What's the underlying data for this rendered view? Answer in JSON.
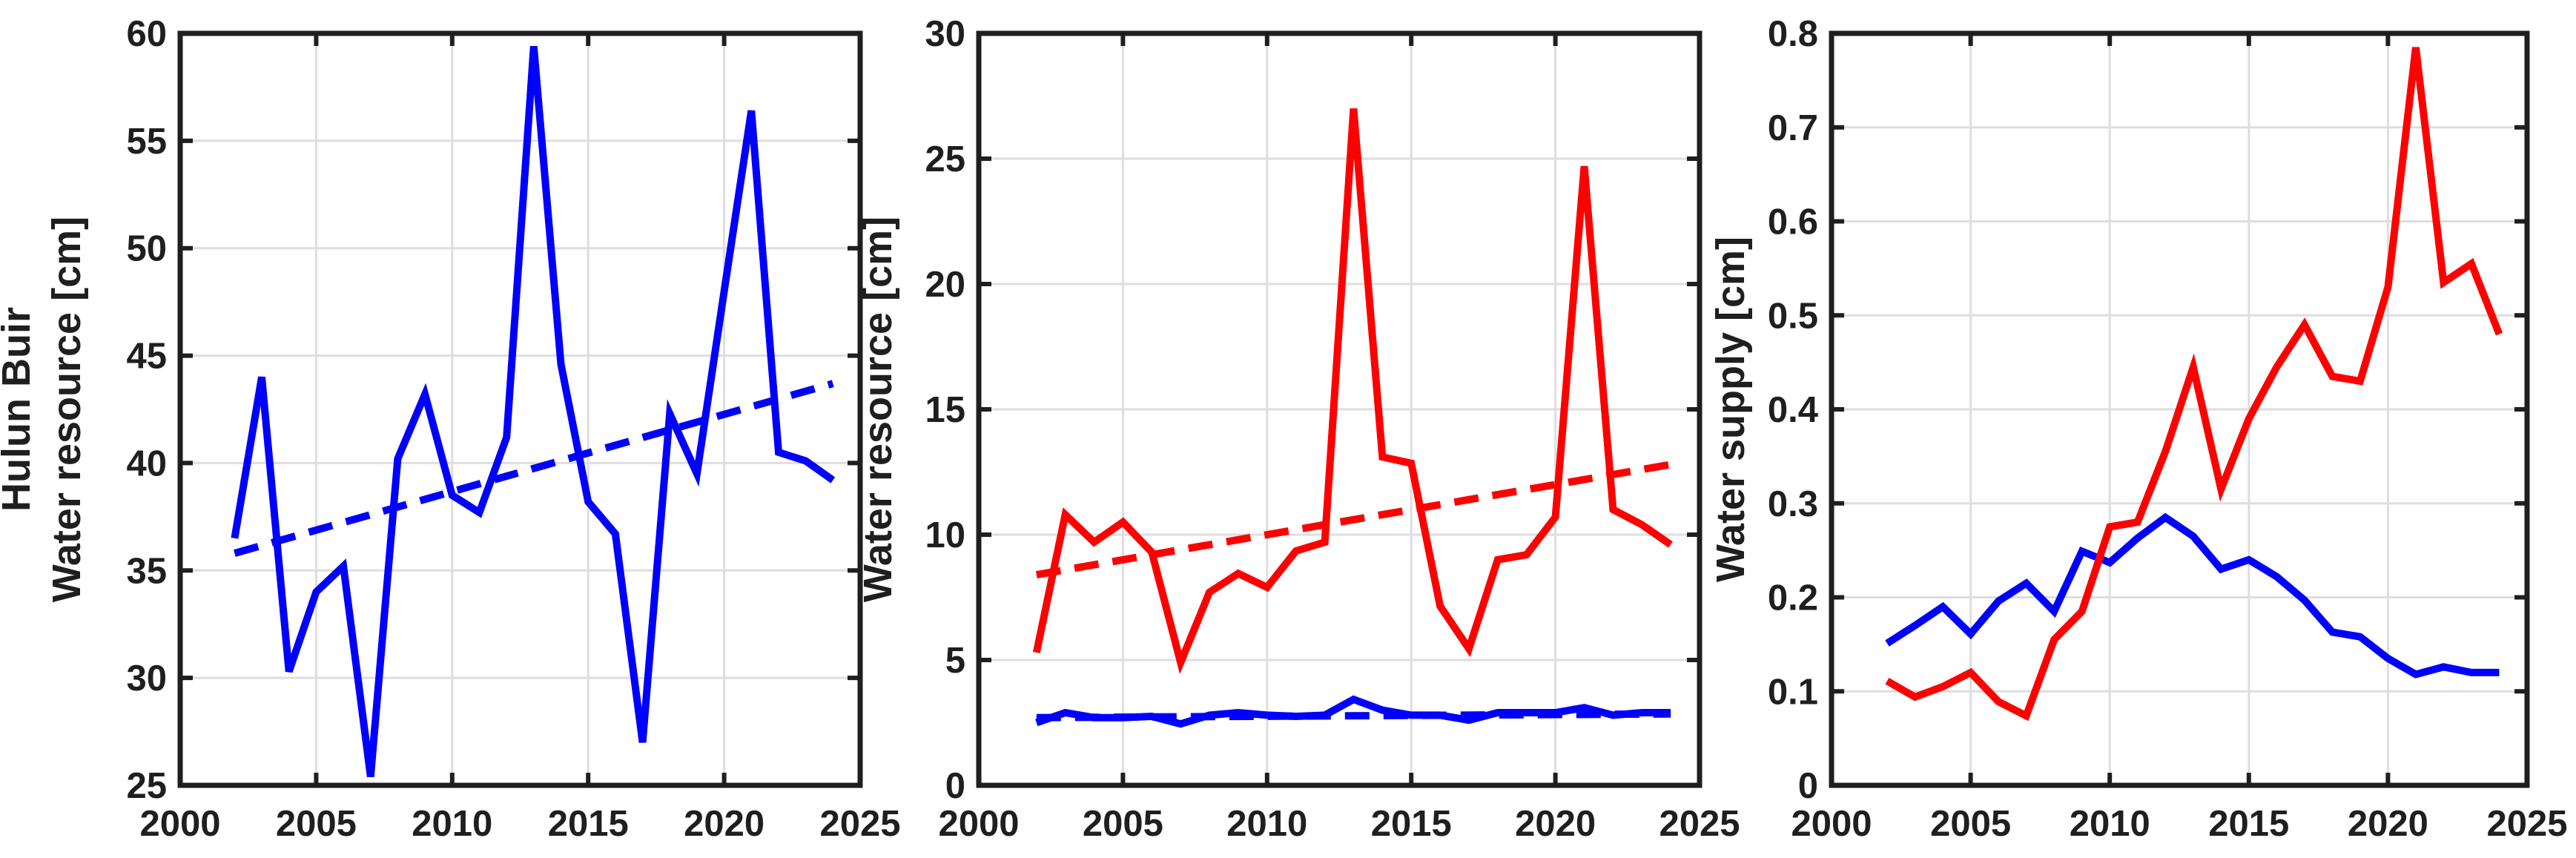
{
  "figure": {
    "background": "#ffffff",
    "axis_color": "#1f1f1f",
    "grid_color": "#dedede",
    "series_blue": "#0000ff",
    "series_red": "#ff0000"
  },
  "chart_data": [
    {
      "id": "hulun-buir-water-resource",
      "type": "line",
      "title": "",
      "ylabel_lines": [
        "Hulun Buir",
        "Water resource [cm]"
      ],
      "xlabel": "",
      "xlim": [
        2000,
        2025
      ],
      "ylim": [
        25,
        60
      ],
      "xticks": [
        "2000",
        "2005",
        "2010",
        "2015",
        "2020",
        "2025"
      ],
      "yticks": [
        "25",
        "30",
        "35",
        "40",
        "45",
        "50",
        "55",
        "60"
      ],
      "grid": true,
      "legend": null,
      "x": [
        2002,
        2003,
        2004,
        2005,
        2006,
        2007,
        2008,
        2009,
        2010,
        2011,
        2012,
        2013,
        2014,
        2015,
        2016,
        2017,
        2018,
        2019,
        2020,
        2021,
        2022,
        2023,
        2024
      ],
      "series": [
        {
          "key": "blue-dashed-trend",
          "color": "#0000ff",
          "style": "dashed",
          "x": [
            2002,
            2024
          ],
          "values": [
            35.8,
            43.7
          ]
        },
        {
          "key": "blue-solid",
          "color": "#0000ff",
          "style": "solid",
          "values": [
            36.5,
            44.0,
            30.3,
            34.0,
            35.2,
            25.4,
            40.2,
            43.2,
            38.5,
            37.7,
            41.2,
            59.4,
            44.6,
            38.2,
            36.7,
            27.0,
            42.3,
            39.5,
            48.0,
            56.4,
            40.5,
            40.1,
            39.2
          ]
        }
      ]
    },
    {
      "id": "water-resource",
      "type": "line",
      "title": "",
      "ylabel_lines": [
        "Water resource [cm]"
      ],
      "xlabel": "",
      "xlim": [
        2000,
        2025
      ],
      "ylim": [
        0,
        30
      ],
      "xticks": [
        "2000",
        "2005",
        "2010",
        "2015",
        "2020",
        "2025"
      ],
      "yticks": [
        "0",
        "5",
        "10",
        "15",
        "20",
        "25",
        "30"
      ],
      "grid": true,
      "legend": null,
      "x": [
        2002,
        2003,
        2004,
        2005,
        2006,
        2007,
        2008,
        2009,
        2010,
        2011,
        2012,
        2013,
        2014,
        2015,
        2016,
        2017,
        2018,
        2019,
        2020,
        2021,
        2022,
        2023,
        2024
      ],
      "series": [
        {
          "key": "red-dashed-trend",
          "color": "#ff0000",
          "style": "dashed",
          "x": [
            2002,
            2024
          ],
          "values": [
            8.4,
            12.8
          ]
        },
        {
          "key": "blue-dashed-trend",
          "color": "#0000ff",
          "style": "dashed",
          "x": [
            2002,
            2024
          ],
          "values": [
            2.7,
            2.85
          ]
        },
        {
          "key": "red-solid",
          "color": "#ff0000",
          "style": "solid",
          "values": [
            5.3,
            10.8,
            9.7,
            10.5,
            9.3,
            4.9,
            7.7,
            8.45,
            7.9,
            9.35,
            9.7,
            27.0,
            13.1,
            12.85,
            7.15,
            5.45,
            9.0,
            9.2,
            10.7,
            24.7,
            11.0,
            10.4,
            9.6
          ]
        },
        {
          "key": "blue-solid",
          "color": "#0000ff",
          "style": "solid",
          "values": [
            2.5,
            2.9,
            2.7,
            2.7,
            2.75,
            2.45,
            2.8,
            2.9,
            2.8,
            2.75,
            2.8,
            3.43,
            3.0,
            2.8,
            2.8,
            2.6,
            2.9,
            2.9,
            2.9,
            3.1,
            2.8,
            2.9,
            2.9
          ]
        }
      ]
    },
    {
      "id": "water-supply",
      "type": "line",
      "title": "",
      "ylabel_lines": [
        "Water supply [cm]"
      ],
      "xlabel": "",
      "xlim": [
        2000,
        2025
      ],
      "ylim": [
        0,
        0.8
      ],
      "xticks": [
        "2000",
        "2005",
        "2010",
        "2015",
        "2020",
        "2025"
      ],
      "yticks": [
        "0",
        "0.1",
        "0.2",
        "0.3",
        "0.4",
        "0.5",
        "0.6",
        "0.7",
        "0.8"
      ],
      "grid": true,
      "legend": null,
      "x": [
        2002,
        2003,
        2004,
        2005,
        2006,
        2007,
        2008,
        2009,
        2010,
        2011,
        2012,
        2013,
        2014,
        2015,
        2016,
        2017,
        2018,
        2019,
        2020,
        2021,
        2022,
        2023,
        2024
      ],
      "series": [
        {
          "key": "blue-solid",
          "color": "#0000ff",
          "style": "solid",
          "values": [
            0.151,
            0.17,
            0.19,
            0.161,
            0.196,
            0.215,
            0.185,
            0.249,
            0.237,
            0.263,
            0.285,
            0.265,
            0.23,
            0.24,
            0.222,
            0.197,
            0.163,
            0.158,
            0.135,
            0.118,
            0.126,
            0.12,
            0.12
          ]
        },
        {
          "key": "red-solid",
          "color": "#ff0000",
          "style": "solid",
          "values": [
            0.111,
            0.094,
            0.105,
            0.12,
            0.089,
            0.074,
            0.155,
            0.185,
            0.275,
            0.28,
            0.355,
            0.445,
            0.315,
            0.39,
            0.445,
            0.49,
            0.435,
            0.43,
            0.53,
            0.785,
            0.535,
            0.555,
            0.48
          ]
        }
      ]
    }
  ]
}
